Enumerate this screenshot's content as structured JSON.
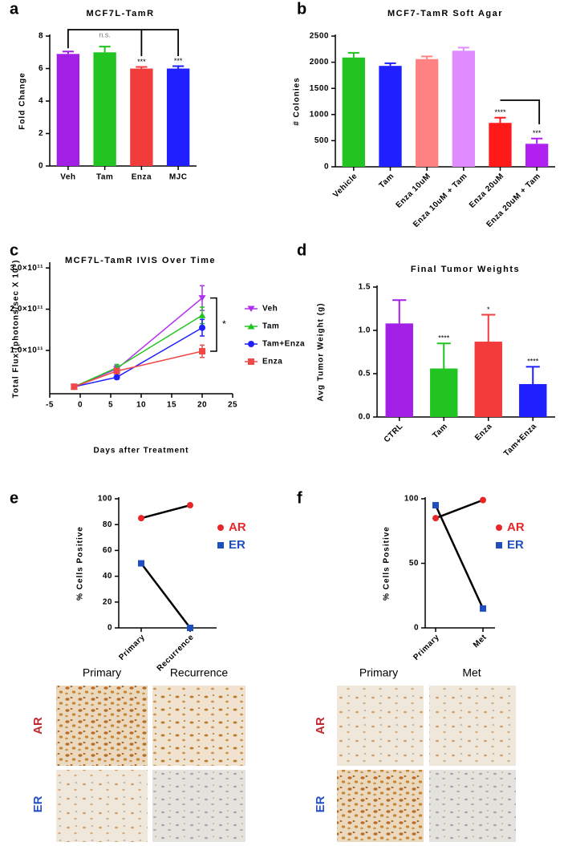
{
  "chart_data": [
    {
      "type": "bar",
      "label": "a",
      "title": "MCF7L-TamR",
      "ylabel": "Fold Change",
      "categories": [
        "Veh",
        "Tam",
        "Enza",
        "MJC"
      ],
      "values": [
        6.9,
        7.0,
        6.0,
        6.0
      ],
      "errors": [
        0.15,
        0.35,
        0.1,
        0.15
      ],
      "colors": [
        "#a21fe6",
        "#22c422",
        "#f23c3c",
        "#1f1fff"
      ],
      "annotations": [
        null,
        "n.s.",
        "***",
        "***"
      ],
      "ylim": [
        0,
        8
      ],
      "yticks": [
        0,
        2,
        4,
        6,
        8
      ]
    },
    {
      "type": "bar",
      "label": "b",
      "title": "MCF7-TamR Soft Agar",
      "ylabel": "# Colonies",
      "categories": [
        "Vehicle",
        "Tam",
        "Enza 10uM",
        "Enza 10uM + Tam",
        "Enza 20uM",
        "Enza 20uM + Tam"
      ],
      "values": [
        2090,
        1930,
        2060,
        2220,
        840,
        440
      ],
      "errors": [
        90,
        50,
        50,
        60,
        100,
        100
      ],
      "colors": [
        "#22c422",
        "#1f1fff",
        "#ff8282",
        "#e08cff",
        "#ff1a1a",
        "#b020f0"
      ],
      "annotations": [
        null,
        null,
        null,
        null,
        "****",
        "***"
      ],
      "ylim": [
        0,
        2500
      ],
      "yticks": [
        0,
        500,
        1000,
        1500,
        2000,
        2500
      ]
    },
    {
      "type": "line",
      "label": "c",
      "title": "MCF7L-TamR IVIS Over Time",
      "ylabel": "Total Flux (photons/sec X 10⁹)",
      "xlabel": "Days after Treatment",
      "x": [
        -1,
        6,
        20
      ],
      "series": [
        {
          "name": "Veh",
          "color": "#b030f0",
          "marker": "triangle-down",
          "values": [
            12000000000,
            55000000000,
            227000000000
          ],
          "errors": [
            2000000000,
            8000000000,
            30000000000
          ]
        },
        {
          "name": "Tam",
          "color": "#22c422",
          "marker": "triangle-up",
          "values": [
            12000000000,
            58000000000,
            185000000000
          ],
          "errors": [
            2000000000,
            8000000000,
            20000000000
          ]
        },
        {
          "name": "Tam+Enza",
          "color": "#1f1fff",
          "marker": "circle",
          "values": [
            12000000000,
            35000000000,
            155000000000
          ],
          "errors": [
            2000000000,
            5000000000,
            20000000000
          ]
        },
        {
          "name": "Enza",
          "color": "#f04848",
          "marker": "square",
          "values": [
            12000000000,
            50000000000,
            98000000000
          ],
          "errors": [
            2000000000,
            6000000000,
            15000000000
          ]
        }
      ],
      "annotation": "*",
      "xlim": [
        -5,
        25
      ],
      "xticks": [
        -5,
        0,
        5,
        10,
        15,
        20,
        25
      ],
      "ylim": [
        -5000000000,
        310000000000
      ],
      "yticks": [
        {
          "value": 100000000000,
          "label": "1.0×10¹¹"
        },
        {
          "value": 200000000000,
          "label": "2.0×10¹¹"
        },
        {
          "value": 300000000000,
          "label": "3.0×10¹¹"
        }
      ]
    },
    {
      "type": "bar",
      "label": "d",
      "title": "Final Tumor Weights",
      "ylabel": "Avg Tumor Weight (g)",
      "categories": [
        "CTRL",
        "Tam",
        "Enza",
        "Tam+Enza"
      ],
      "values": [
        1.08,
        0.56,
        0.87,
        0.38
      ],
      "errors": [
        0.27,
        0.29,
        0.31,
        0.2
      ],
      "colors": [
        "#a21fe6",
        "#22c422",
        "#f23c3c",
        "#1f1fff"
      ],
      "annotations": [
        null,
        "****",
        "*",
        "****"
      ],
      "ylim": [
        0,
        1.5
      ],
      "yticks": [
        {
          "value": 0,
          "label": "0.0"
        },
        {
          "value": 0.5,
          "label": "0.5"
        },
        {
          "value": 1,
          "label": "1.0"
        },
        {
          "value": 1.5,
          "label": "1.5"
        }
      ]
    },
    {
      "type": "line",
      "label": "e",
      "ylabel": "% Cells Positive",
      "categories": [
        "Primary",
        "Recurrence"
      ],
      "line_color": "#000000",
      "series": [
        {
          "name": "AR",
          "color": "#e8262a",
          "marker": "circle",
          "values": [
            85,
            95
          ]
        },
        {
          "name": "ER",
          "color": "#1f4fbf",
          "marker": "square",
          "values": [
            50,
            0
          ]
        }
      ],
      "ylim": [
        0,
        100
      ],
      "yticks": [
        0,
        20,
        40,
        60,
        80,
        100
      ]
    },
    {
      "type": "line",
      "label": "f",
      "ylabel": "% Cells Positive",
      "categories": [
        "Primary",
        "Met"
      ],
      "line_color": "#000000",
      "series": [
        {
          "name": "AR",
          "color": "#e8262a",
          "marker": "circle",
          "values": [
            85,
            99
          ]
        },
        {
          "name": "ER",
          "color": "#1f4fbf",
          "marker": "square",
          "values": [
            95,
            15
          ]
        }
      ],
      "ylim": [
        0,
        100
      ],
      "yticks": [
        0,
        50,
        100
      ]
    }
  ],
  "micrographs": [
    {
      "columns": [
        "Primary",
        "Recurrence"
      ],
      "rows": [
        "AR",
        "ER"
      ]
    },
    {
      "columns": [
        "Primary",
        "Met"
      ],
      "rows": [
        "AR",
        "ER"
      ]
    }
  ]
}
